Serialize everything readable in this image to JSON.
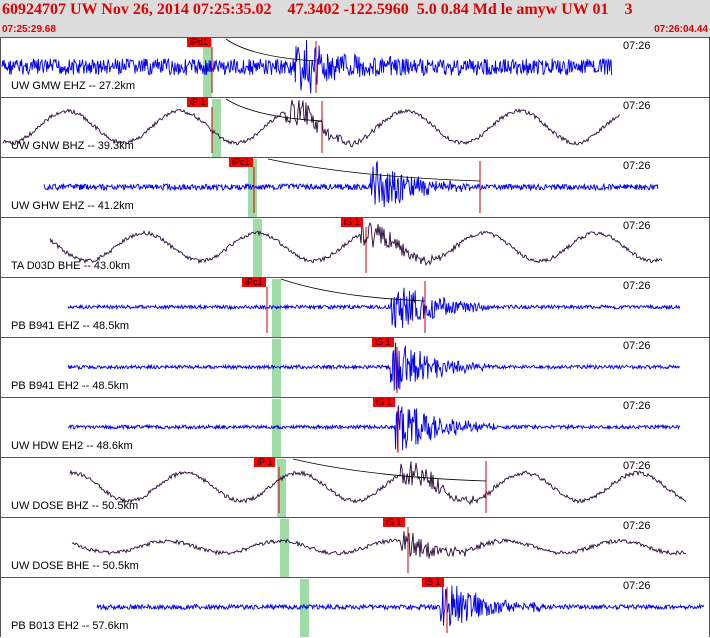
{
  "header": {
    "title": "60924707 UW Nov 26, 2014 07:25:35.02    47.3402 -122.5960  5.0 0.84 Md le amyw UW 01    3",
    "time_start": "07:25:29.68",
    "time_end": "07:26:04.44"
  },
  "colors": {
    "header_bg": "#dcdcdc",
    "header_text": "#e00000",
    "trace_short_period": "#0000ee",
    "trace_broadband": "#2a0a3a",
    "pick_flag": "#ff0000",
    "window_shade": "#9fdca6"
  },
  "channels": [
    {
      "label": "UW GMW EHZ -- 27.2km",
      "time": "07:26",
      "pick": "iPd1"
    },
    {
      "label": "UW GNW BHZ -- 39.3km",
      "time": "07:26",
      "pick": "iP 1"
    },
    {
      "label": "UW GHW EHZ -- 41.2km",
      "time": "07:26",
      "pick": "iPc1"
    },
    {
      "label": "TA D03D BHE -- 43.0km",
      "time": "07:26",
      "pick": "iS 1"
    },
    {
      "label": "PB B941 EHZ -- 48.5km",
      "time": "07:26",
      "pick": "iPc1"
    },
    {
      "label": "PB B941 EH2 -- 48.5km",
      "time": "07:26",
      "pick": "iS 1"
    },
    {
      "label": "UW HDW EH2 -- 48.6km",
      "time": "07:26",
      "pick": "iS 1"
    },
    {
      "label": "UW DOSE BHZ -- 50.5km",
      "time": "07:26",
      "pick": "iP 1"
    },
    {
      "label": "UW DOSE BHE -- 50.5km",
      "time": "07:26",
      "pick": "iS 1"
    },
    {
      "label": "PB B013 EH2 -- 57.6km",
      "time": "07:26",
      "pick": "iS 1"
    }
  ]
}
